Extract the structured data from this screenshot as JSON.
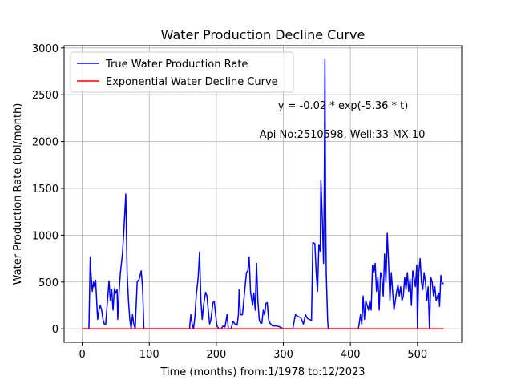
{
  "chart_data": {
    "type": "line",
    "title": "Water Production Decline Curve",
    "xlabel": "Time (months) from:1/1978 to:12/2023",
    "ylabel": "Water Production Rate (bbl/month)",
    "annotations": [
      "y = -0.02 * exp(-5.36 * t)",
      "Api No:2510598, Well:33-MX-10"
    ],
    "xlim": [
      -27,
      566
    ],
    "ylim": [
      -144,
      3024
    ],
    "xticks": [
      0,
      100,
      200,
      300,
      400,
      500
    ],
    "yticks": [
      0,
      500,
      1000,
      1500,
      2000,
      2500,
      3000
    ],
    "grid": true,
    "legend": "upper left",
    "series": [
      {
        "name": "True Water Production Rate",
        "color": "#0000ff",
        "x": [
          0,
          10,
          12,
          13,
          15,
          17,
          18,
          20,
          23,
          25,
          27,
          29,
          31,
          33,
          35,
          40,
          42,
          44,
          46,
          48,
          50,
          52,
          53,
          55,
          57,
          60,
          62,
          65,
          67,
          69,
          71,
          73,
          75,
          77,
          79,
          82,
          85,
          88,
          90,
          92,
          160,
          162,
          164,
          166,
          168,
          170,
          173,
          175,
          177,
          179,
          181,
          184,
          186,
          188,
          190,
          192,
          195,
          197,
          199,
          201,
          204,
          207,
          210,
          213,
          216,
          218,
          222,
          225,
          228,
          231,
          233,
          234,
          236,
          239,
          242,
          245,
          247,
          249,
          251,
          254,
          256,
          258,
          260,
          262,
          264,
          266,
          268,
          270,
          272,
          274,
          276,
          278,
          280,
          284,
          290,
          295,
          300,
          314,
          318,
          322,
          326,
          330,
          333,
          336,
          339,
          342,
          344,
          347,
          349,
          351,
          353,
          355,
          356,
          358,
          360,
          361,
          362,
          363,
          364,
          366,
          367,
          412,
          415,
          417,
          419,
          421,
          423,
          425,
          427,
          429,
          431,
          433,
          435,
          437,
          439,
          441,
          443,
          445,
          447,
          449,
          451,
          453,
          455,
          457,
          459,
          461,
          463,
          465,
          467,
          469,
          471,
          473,
          475,
          477,
          479,
          481,
          483,
          485,
          487,
          489,
          491,
          493,
          495,
          497,
          499,
          500,
          502,
          504,
          506,
          508,
          510,
          512,
          514,
          516,
          518,
          520,
          522,
          524,
          526,
          528,
          530,
          532,
          533,
          535,
          537,
          539
        ],
        "values": [
          0,
          0,
          770,
          600,
          400,
          500,
          450,
          520,
          100,
          200,
          250,
          200,
          100,
          50,
          50,
          510,
          300,
          420,
          200,
          430,
          380,
          420,
          100,
          400,
          600,
          800,
          1030,
          1440,
          600,
          300,
          100,
          0,
          150,
          50,
          0,
          500,
          530,
          620,
          450,
          0,
          0,
          150,
          50,
          0,
          120,
          350,
          550,
          820,
          300,
          100,
          250,
          390,
          350,
          200,
          50,
          100,
          280,
          290,
          150,
          30,
          0,
          0,
          30,
          20,
          150,
          0,
          0,
          80,
          50,
          40,
          150,
          420,
          150,
          150,
          380,
          600,
          620,
          770,
          400,
          250,
          380,
          200,
          700,
          300,
          100,
          60,
          60,
          200,
          150,
          270,
          280,
          100,
          60,
          30,
          30,
          20,
          0,
          0,
          150,
          130,
          120,
          50,
          150,
          110,
          100,
          90,
          920,
          910,
          600,
          400,
          900,
          830,
          1590,
          1200,
          700,
          1500,
          2880,
          1300,
          600,
          100,
          0,
          0,
          150,
          50,
          350,
          100,
          300,
          250,
          200,
          300,
          200,
          680,
          600,
          700,
          400,
          550,
          200,
          600,
          550,
          350,
          800,
          500,
          1020,
          700,
          300,
          600,
          400,
          200,
          300,
          400,
          470,
          350,
          450,
          300,
          350,
          550,
          420,
          600,
          400,
          530,
          250,
          620,
          550,
          450,
          680,
          0,
          600,
          750,
          500,
          420,
          600,
          500,
          300,
          450,
          0,
          550,
          500,
          350,
          450,
          300,
          350,
          380,
          240,
          570,
          480,
          490
        ]
      },
      {
        "name": "Exponential Water Decline Curve",
        "color": "#ff0000",
        "x": [
          0,
          539
        ],
        "values": [
          -0.02,
          0
        ]
      }
    ]
  }
}
